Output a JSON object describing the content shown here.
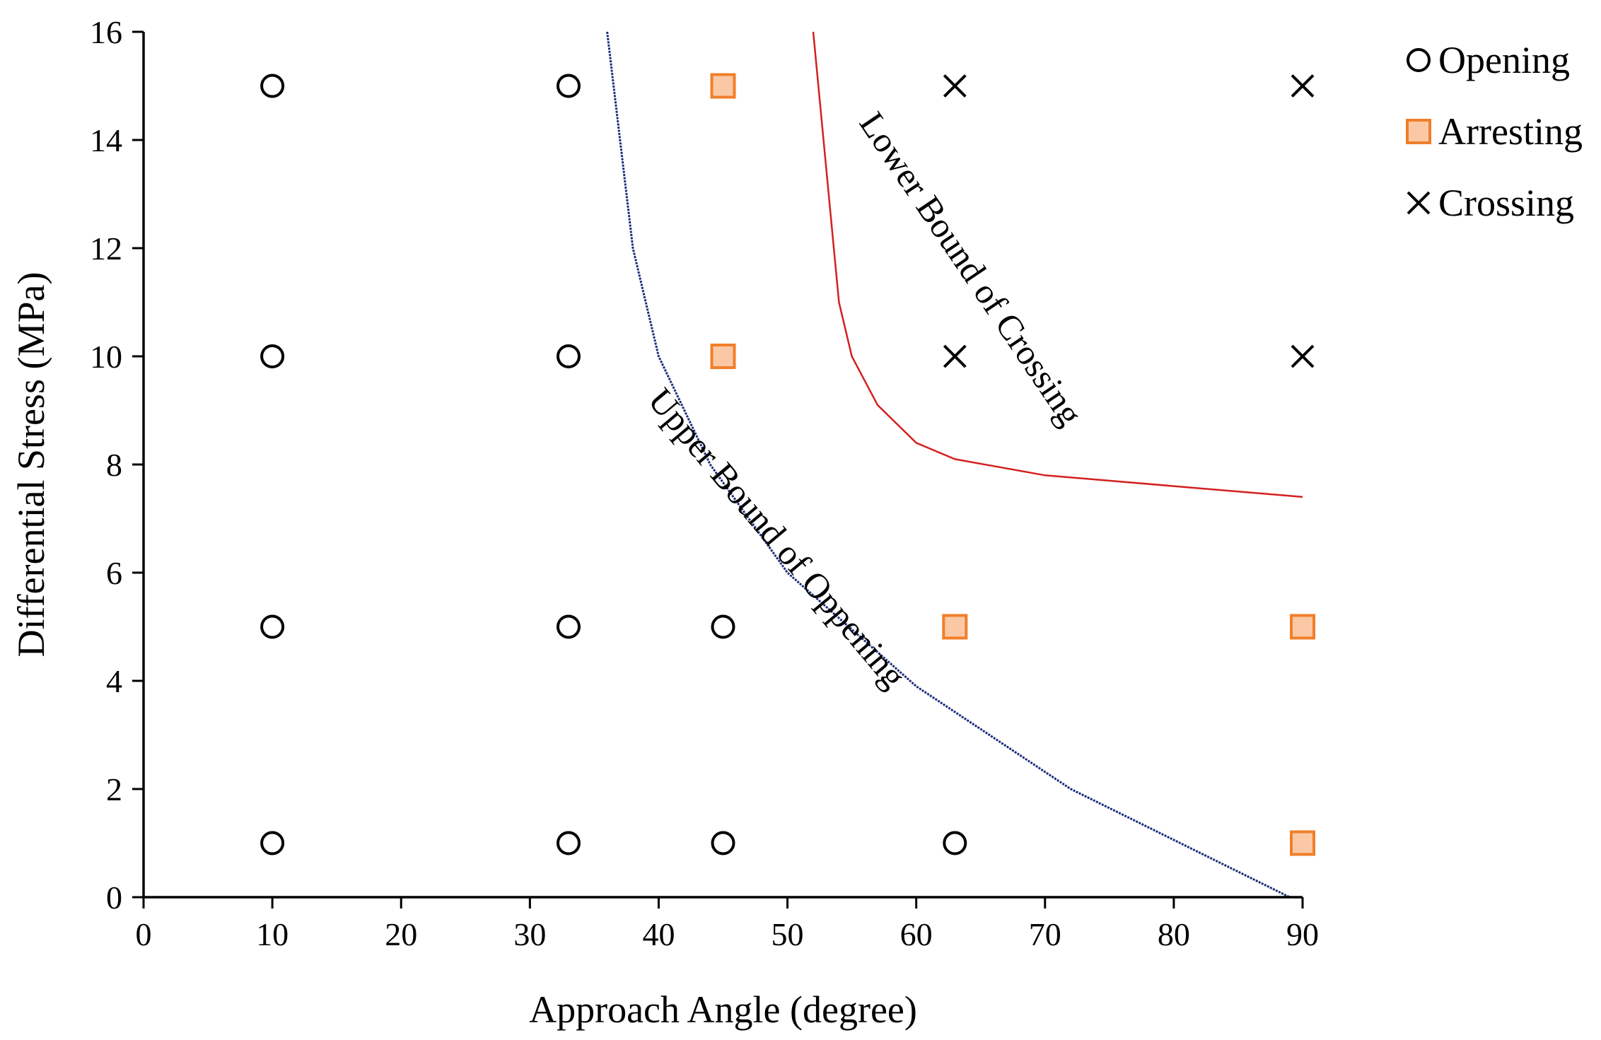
{
  "chart_data": {
    "type": "scatter",
    "xlabel": "Approach Angle (degree)",
    "ylabel": "Differential Stress (MPa)",
    "xlim": [
      0,
      90
    ],
    "ylim": [
      0,
      16
    ],
    "xticks": [
      0,
      10,
      20,
      30,
      40,
      50,
      60,
      70,
      80,
      90
    ],
    "yticks": [
      0,
      2,
      4,
      6,
      8,
      10,
      12,
      14,
      16
    ],
    "grid": false,
    "legend_position": "top-right",
    "series": [
      {
        "name": "Opening",
        "marker": "circle",
        "color": "#000000",
        "points": [
          [
            10,
            1
          ],
          [
            10,
            5
          ],
          [
            10,
            10
          ],
          [
            10,
            15
          ],
          [
            33,
            1
          ],
          [
            33,
            5
          ],
          [
            33,
            10
          ],
          [
            33,
            15
          ],
          [
            45,
            1
          ],
          [
            45,
            5
          ],
          [
            63,
            1
          ]
        ]
      },
      {
        "name": "Arresting",
        "marker": "square",
        "color": "#f07f2a",
        "fill": "#fbc8a6",
        "points": [
          [
            45,
            10
          ],
          [
            45,
            15
          ],
          [
            63,
            5
          ],
          [
            90,
            1
          ],
          [
            90,
            5
          ]
        ]
      },
      {
        "name": "Crossing",
        "marker": "x",
        "color": "#000000",
        "points": [
          [
            63,
            10
          ],
          [
            63,
            15
          ],
          [
            90,
            10
          ],
          [
            90,
            15
          ]
        ]
      }
    ],
    "curves": [
      {
        "name": "Upper Bound of Oppening",
        "color": "#1a2a7a",
        "style": "dotted",
        "points": [
          [
            36,
            16
          ],
          [
            38,
            12
          ],
          [
            40,
            10
          ],
          [
            44,
            8
          ],
          [
            50,
            6
          ],
          [
            60,
            3.9
          ],
          [
            72,
            2
          ],
          [
            89,
            0
          ]
        ],
        "label_anchor": [
          48.5,
          6.5
        ],
        "label_rotation_deg": 50
      },
      {
        "name": "Lower Bound of Crossing",
        "color": "#d42020",
        "style": "solid",
        "points": [
          [
            52,
            16
          ],
          [
            53,
            13.5
          ],
          [
            54,
            11
          ],
          [
            55,
            10
          ],
          [
            57,
            9.1
          ],
          [
            60,
            8.4
          ],
          [
            63,
            8.1
          ],
          [
            70,
            7.8
          ],
          [
            80,
            7.6
          ],
          [
            90,
            7.4
          ]
        ],
        "label_anchor": [
          63.5,
          11.5
        ],
        "label_rotation_deg": 56
      }
    ]
  }
}
